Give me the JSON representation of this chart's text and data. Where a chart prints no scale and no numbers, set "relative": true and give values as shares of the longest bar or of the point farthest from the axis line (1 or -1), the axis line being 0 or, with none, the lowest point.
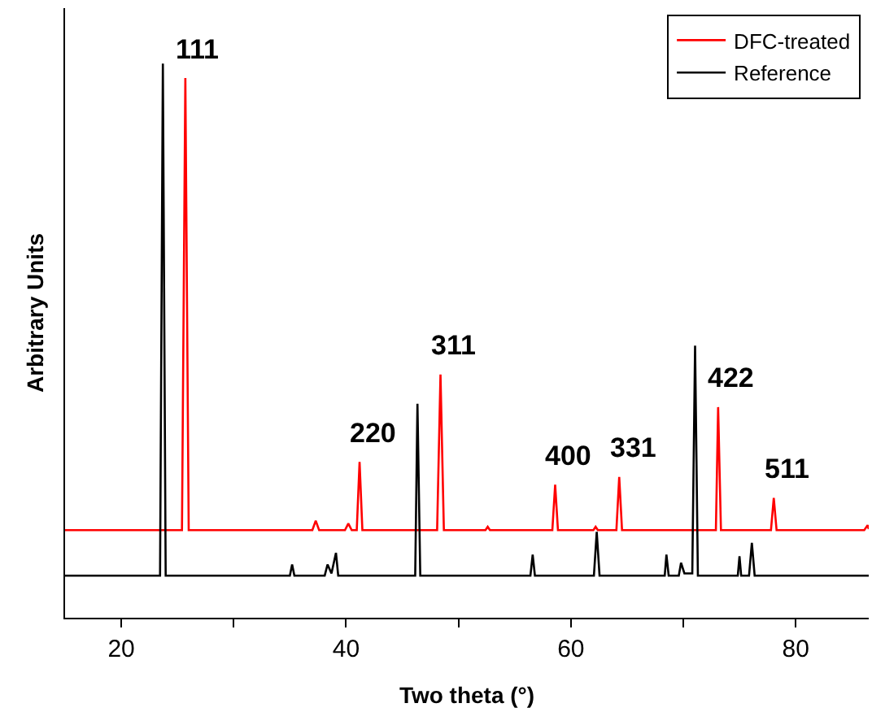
{
  "chart_data": {
    "type": "line",
    "relative": true,
    "xlabel": "Two theta (°)",
    "ylabel": "Arbitrary Units",
    "xlim": [
      15,
      86.5
    ],
    "xticks": [
      20,
      {
        "value": 30,
        "label": null
      },
      40,
      {
        "value": 50,
        "label": null
      },
      60,
      {
        "value": 70,
        "label": null
      },
      80
    ],
    "legend": "top right",
    "marker": "none",
    "line_style": "solid",
    "series": [
      {
        "name": "DFC-treated",
        "color": "#ff0000",
        "x": [
          15,
          25.4,
          25.7,
          26.0,
          37.0,
          37.3,
          37.6,
          39.9,
          40.2,
          40.5,
          40.95,
          41.2,
          41.45,
          48.1,
          48.4,
          48.7,
          52.4,
          52.6,
          52.8,
          58.35,
          58.6,
          58.85,
          62.0,
          62.2,
          62.4,
          64.05,
          64.3,
          64.55,
          72.9,
          73.1,
          73.35,
          77.8,
          78.05,
          78.3,
          86.1,
          86.4,
          86.5
        ],
        "values": [
          0.158,
          0.158,
          0.974,
          0.158,
          0.158,
          0.175,
          0.158,
          0.158,
          0.17,
          0.158,
          0.158,
          0.281,
          0.158,
          0.158,
          0.439,
          0.158,
          0.158,
          0.164,
          0.158,
          0.158,
          0.24,
          0.158,
          0.158,
          0.164,
          0.158,
          0.158,
          0.254,
          0.158,
          0.158,
          0.38,
          0.158,
          0.158,
          0.216,
          0.158,
          0.158,
          0.167,
          0.16
        ]
      },
      {
        "name": "Reference",
        "color": "#000000",
        "x": [
          15,
          23.45,
          23.7,
          23.95,
          35.0,
          35.2,
          35.4,
          38.1,
          38.35,
          38.7,
          39.1,
          39.3,
          46.15,
          46.35,
          46.6,
          56.4,
          56.6,
          56.8,
          62.05,
          62.3,
          62.55,
          68.35,
          68.5,
          68.7,
          69.6,
          69.8,
          70.1,
          70.8,
          71.05,
          71.3,
          74.85,
          75.0,
          75.15,
          75.85,
          76.1,
          76.35,
          86.5
        ],
        "values": [
          0.076,
          0.076,
          1.0,
          0.076,
          0.076,
          0.096,
          0.076,
          0.076,
          0.096,
          0.08,
          0.117,
          0.076,
          0.076,
          0.386,
          0.076,
          0.076,
          0.114,
          0.076,
          0.076,
          0.155,
          0.076,
          0.076,
          0.114,
          0.076,
          0.076,
          0.099,
          0.08,
          0.08,
          0.491,
          0.076,
          0.076,
          0.111,
          0.076,
          0.076,
          0.135,
          0.076,
          0.076
        ]
      }
    ],
    "annotations": [
      {
        "text": "111",
        "x": 25.7,
        "y": 0.974
      },
      {
        "text": "220",
        "x": 41.2,
        "y": 0.281
      },
      {
        "text": "311",
        "x": 48.4,
        "y": 0.439
      },
      {
        "text": "400",
        "x": 58.6,
        "y": 0.24
      },
      {
        "text": "331",
        "x": 64.3,
        "y": 0.254
      },
      {
        "text": "422",
        "x": 73.1,
        "y": 0.38
      },
      {
        "text": "511",
        "x": 78.05,
        "y": 0.216
      }
    ]
  }
}
